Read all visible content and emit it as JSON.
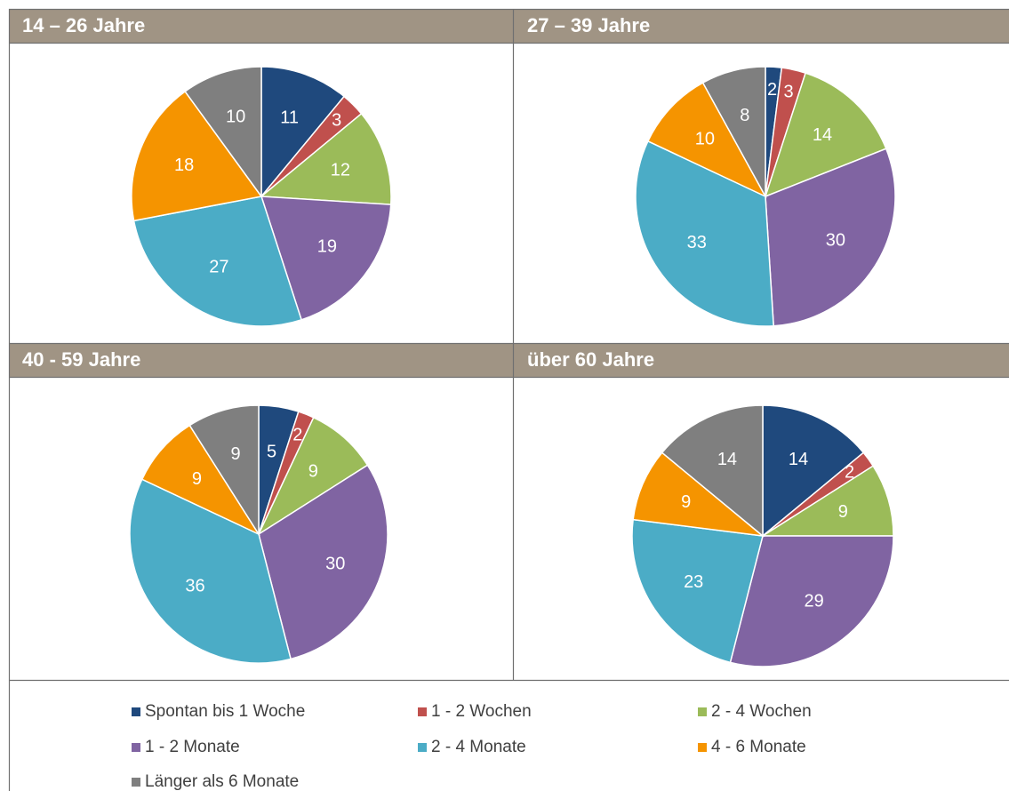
{
  "chart_data": [
    {
      "type": "pie",
      "title": "14 – 26 Jahre",
      "values": [
        11,
        3,
        12,
        19,
        27,
        18,
        10
      ]
    },
    {
      "type": "pie",
      "title": "27 – 39 Jahre",
      "values": [
        2,
        3,
        14,
        30,
        33,
        10,
        8
      ]
    },
    {
      "type": "pie",
      "title": "40  - 59 Jahre",
      "values": [
        5,
        2,
        9,
        30,
        36,
        9,
        9
      ]
    },
    {
      "type": "pie",
      "title": "über 60 Jahre",
      "values": [
        14,
        2,
        9,
        29,
        23,
        9,
        14
      ]
    }
  ],
  "legend": {
    "categories": [
      "Spontan bis 1 Woche",
      "1 - 2 Wochen",
      "2 - 4 Wochen",
      "1 - 2 Monate",
      "2 - 4 Monate",
      "4 - 6 Monate",
      "Länger als 6 Monate"
    ],
    "colors": [
      "#1f497d",
      "#c0504d",
      "#9bbb59",
      "#8064a2",
      "#4bacc6",
      "#f59400",
      "#7f7f7f"
    ]
  }
}
